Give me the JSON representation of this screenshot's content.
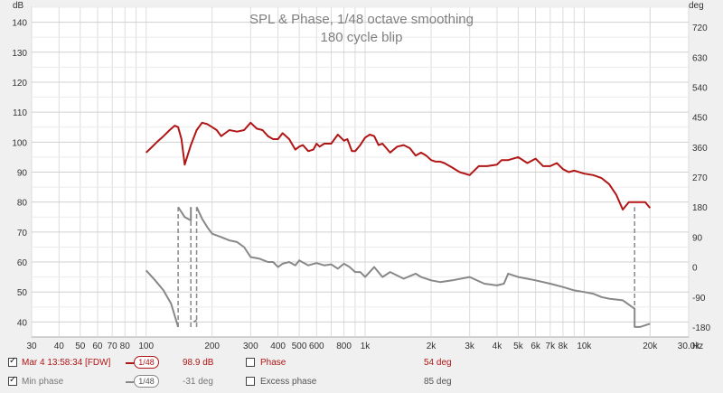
{
  "chart_data": {
    "type": "line",
    "title": "SPL & Phase, 1/48 octave smoothing",
    "subtitle": "180 cycle blip",
    "left_axis_unit": "dB",
    "right_axis_unit": "deg",
    "x_axis_unit": "Hz",
    "x_scale": "log",
    "xlim": [
      30,
      30000
    ],
    "ylim": [
      35,
      145
    ],
    "y2lim": [
      -210,
      780
    ],
    "grid": true,
    "x_tick_labels": [
      "30",
      "40",
      "50",
      "60",
      "70",
      "80",
      "100",
      "200",
      "300",
      "400",
      "500",
      "600",
      "800",
      "1k",
      "2k",
      "3k",
      "4k",
      "5k",
      "6k",
      "7k",
      "8k",
      "10k",
      "20k",
      "30.0k"
    ],
    "x_tick_values": [
      30,
      40,
      50,
      60,
      70,
      80,
      100,
      200,
      300,
      400,
      500,
      600,
      800,
      1000,
      2000,
      3000,
      4000,
      5000,
      6000,
      7000,
      8000,
      10000,
      20000,
      30000
    ],
    "y_tick_labels": [
      "40",
      "50",
      "60",
      "70",
      "80",
      "90",
      "100",
      "110",
      "120",
      "130",
      "140"
    ],
    "y_tick_values": [
      40,
      50,
      60,
      70,
      80,
      90,
      100,
      110,
      120,
      130,
      140
    ],
    "y2_tick_labels": [
      "-180",
      "-90",
      "0",
      "90",
      "180",
      "270",
      "360",
      "450",
      "540",
      "630",
      "720"
    ],
    "y2_tick_values": [
      -180,
      -90,
      0,
      90,
      180,
      270,
      360,
      450,
      540,
      630,
      720
    ],
    "series": [
      {
        "name": "Mar 4 13:58:34 [FDW]",
        "axis": "left",
        "color": "#b01616",
        "x": [
          100,
          105,
          112,
          120,
          128,
          135,
          140,
          145,
          150,
          160,
          170,
          180,
          190,
          200,
          210,
          220,
          240,
          260,
          280,
          300,
          320,
          340,
          360,
          380,
          400,
          420,
          450,
          480,
          500,
          520,
          550,
          580,
          600,
          620,
          650,
          700,
          750,
          800,
          830,
          870,
          900,
          950,
          1000,
          1050,
          1100,
          1150,
          1200,
          1300,
          1400,
          1500,
          1600,
          1700,
          1800,
          1900,
          2000,
          2100,
          2200,
          2300,
          2500,
          2700,
          3000,
          3300,
          3600,
          4000,
          4200,
          4500,
          5000,
          5500,
          6000,
          6500,
          7000,
          7500,
          8000,
          8500,
          9000,
          10000,
          11000,
          12000,
          13000,
          14000,
          15000,
          16000,
          17000,
          18000,
          19000,
          20000
        ],
        "y": [
          96.5,
          98,
          100,
          102,
          104,
          105.5,
          105,
          101,
          92.5,
          99,
          104,
          106.5,
          106,
          105,
          104,
          102,
          104,
          103.5,
          104,
          106.5,
          104.5,
          104,
          102,
          101,
          101,
          103,
          101,
          97.5,
          98.5,
          99,
          97,
          97.5,
          99.5,
          98.5,
          99.5,
          99.5,
          102.5,
          100.5,
          101,
          97,
          97,
          99,
          101.5,
          102.5,
          102,
          99,
          99.5,
          96.5,
          98.5,
          99,
          98,
          95.5,
          96.5,
          95.5,
          94,
          93.5,
          93.5,
          93,
          91.5,
          90,
          89,
          92,
          92,
          92.5,
          94,
          94,
          95,
          93,
          94.5,
          92,
          92,
          93,
          91,
          90,
          90.5,
          89.5,
          89,
          88,
          86,
          82.5,
          77.5,
          80,
          80,
          80,
          80,
          78
        ]
      },
      {
        "name": "Min phase",
        "axis": "right",
        "color": "#888888",
        "x": [
          100,
          110,
          120,
          130,
          140,
          140,
          150,
          160,
          160,
          165,
          170,
          170,
          180,
          190,
          200,
          220,
          240,
          260,
          280,
          300,
          330,
          360,
          380,
          400,
          420,
          450,
          480,
          500,
          550,
          600,
          650,
          700,
          750,
          800,
          850,
          900,
          950,
          1000,
          1100,
          1200,
          1300,
          1500,
          1700,
          1800,
          2000,
          2200,
          2500,
          3000,
          3500,
          4000,
          4300,
          4500,
          5000,
          5500,
          6000,
          7000,
          8000,
          9000,
          10000,
          11000,
          12000,
          13000,
          15000,
          17000,
          17000,
          18000,
          19000,
          20000
        ],
        "y": [
          -10,
          -40,
          -70,
          -110,
          -180,
          180,
          150,
          140,
          180,
          -165,
          -160,
          180,
          145,
          120,
          100,
          90,
          80,
          75,
          60,
          30,
          25,
          15,
          15,
          0,
          10,
          15,
          5,
          20,
          5,
          12,
          5,
          8,
          -5,
          10,
          0,
          -15,
          -15,
          -30,
          0,
          -30,
          -15,
          -35,
          -20,
          -30,
          -40,
          -45,
          -40,
          -30,
          -50,
          -55,
          -50,
          -20,
          -30,
          -35,
          -40,
          -50,
          -60,
          -70,
          -75,
          -80,
          -90,
          -95,
          -100,
          -125,
          -180,
          -180,
          -175,
          -170
        ]
      }
    ],
    "phase_jumps_hz": [
      140,
      160,
      170,
      17000
    ]
  },
  "legend": {
    "rows": [
      {
        "checked": true,
        "name": "Mar 4 13:58:34 [FDW]",
        "smoothing": "1/48",
        "value": "98.9 dB",
        "extra_checked": false,
        "extra_label": "Phase",
        "extra_value": "54 deg"
      },
      {
        "checked": true,
        "name": "Min phase",
        "smoothing": "1/48",
        "value": "-31 deg",
        "extra_checked": false,
        "extra_label": "Excess phase",
        "extra_value": "85 deg"
      }
    ]
  },
  "colors": {
    "plot_bg": "#ffffff",
    "grid": "#d9d9d9",
    "spl": "#b01616",
    "phase": "#888888",
    "title": "#808080",
    "text": "#333333"
  }
}
